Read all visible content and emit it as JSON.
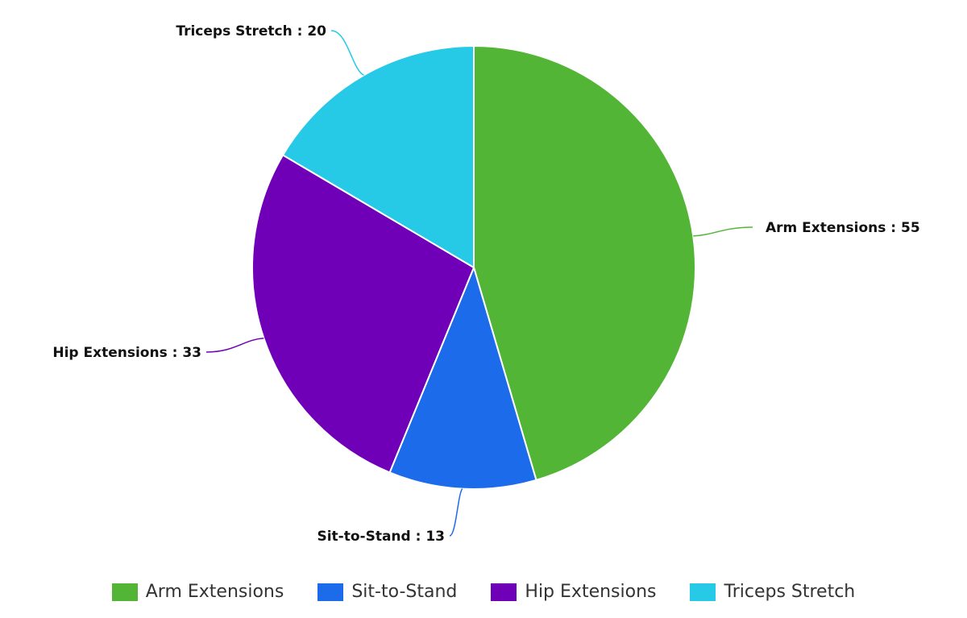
{
  "chart_data": {
    "type": "pie",
    "title": "",
    "legend_position": "bottom",
    "slices": [
      {
        "name": "Arm Extensions",
        "value": 55,
        "color": "#53b535",
        "label": "Arm Extensions : 55"
      },
      {
        "name": "Sit-to-Stand",
        "value": 13,
        "color": "#1b6bea",
        "label": "Sit-to-Stand : 13"
      },
      {
        "name": "Hip Extensions",
        "value": 33,
        "color": "#6f00b8",
        "label": "Hip Extensions : 33"
      },
      {
        "name": "Triceps Stretch",
        "value": 20,
        "color": "#26c9e6",
        "label": "Triceps Stretch : 20"
      }
    ]
  }
}
